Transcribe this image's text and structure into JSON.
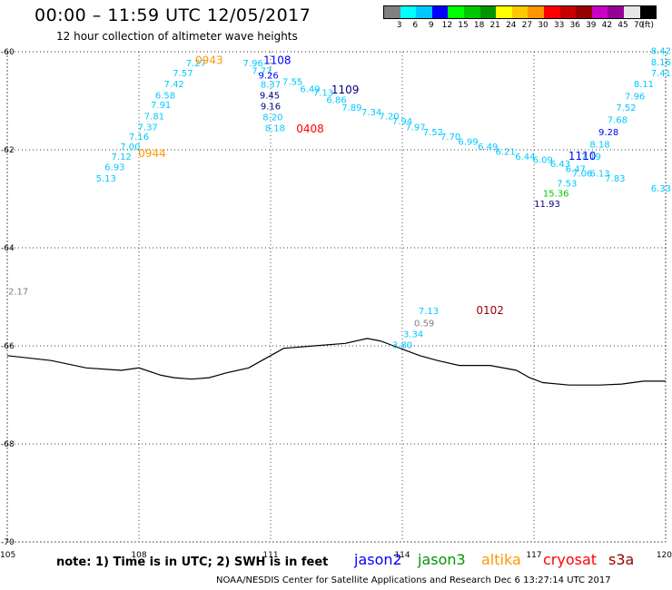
{
  "title": "00:00 – 11:59 UTC 12/05/2017",
  "subtitle": "12 hour collection of altimeter wave heights",
  "colorbar": {
    "colors": [
      "#808080",
      "#00ffff",
      "#00c8ff",
      "#0000ff",
      "#00ff00",
      "#00c800",
      "#009600",
      "#ffff00",
      "#ffc800",
      "#ff9600",
      "#ff0000",
      "#c80000",
      "#960000",
      "#c800c8",
      "#960096",
      "#e6e6e6",
      "#000000"
    ],
    "labels": [
      "3",
      "6",
      "9",
      "12",
      "15",
      "18",
      "21",
      "24",
      "27",
      "30",
      "33",
      "36",
      "39",
      "42",
      "45",
      "70",
      "(ft)"
    ]
  },
  "axes": {
    "lon": {
      "min": 105,
      "max": 120,
      "ticks": [
        "105",
        "108",
        "111",
        "114",
        "117",
        "120"
      ]
    },
    "lat": {
      "min": -70,
      "max": -60,
      "ticks": [
        "-60",
        "-62",
        "-64",
        "-66",
        "-68",
        "-70"
      ]
    }
  },
  "coastline": [
    [
      105,
      -66.2
    ],
    [
      106,
      -66.3
    ],
    [
      106.8,
      -66.45
    ],
    [
      107.6,
      -66.5
    ],
    [
      108,
      -66.45
    ],
    [
      108.5,
      -66.6
    ],
    [
      108.8,
      -66.65
    ],
    [
      109.2,
      -66.68
    ],
    [
      109.6,
      -66.65
    ],
    [
      110,
      -66.55
    ],
    [
      110.5,
      -66.45
    ],
    [
      110.8,
      -66.3
    ],
    [
      111,
      -66.2
    ],
    [
      111.3,
      -66.05
    ],
    [
      112,
      -66.0
    ],
    [
      112.7,
      -65.95
    ],
    [
      113.2,
      -65.85
    ],
    [
      113.5,
      -65.9
    ],
    [
      113.8,
      -66.0
    ],
    [
      114.1,
      -66.1
    ],
    [
      114.4,
      -66.2
    ],
    [
      114.8,
      -66.3
    ],
    [
      115.3,
      -66.4
    ],
    [
      116,
      -66.4
    ],
    [
      116.6,
      -66.5
    ],
    [
      116.9,
      -66.65
    ],
    [
      117.2,
      -66.75
    ],
    [
      117.8,
      -66.8
    ],
    [
      118.5,
      -66.8
    ],
    [
      119,
      -66.78
    ],
    [
      119.5,
      -66.72
    ],
    [
      120,
      -66.72
    ]
  ],
  "wave_labels": [
    {
      "text": "7.27",
      "lon": 109.3,
      "lat": -60.3,
      "color": "#00c8ff"
    },
    {
      "text": "7.57",
      "lon": 109.0,
      "lat": -60.5,
      "color": "#00c8ff"
    },
    {
      "text": "7.42",
      "lon": 108.8,
      "lat": -60.72,
      "color": "#00c8ff"
    },
    {
      "text": "6.58",
      "lon": 108.6,
      "lat": -60.95,
      "color": "#00c8ff"
    },
    {
      "text": "7.91",
      "lon": 108.5,
      "lat": -61.15,
      "color": "#00c8ff"
    },
    {
      "text": "7.81",
      "lon": 108.35,
      "lat": -61.38,
      "color": "#00c8ff"
    },
    {
      "text": "7.37",
      "lon": 108.2,
      "lat": -61.6,
      "color": "#00c8ff"
    },
    {
      "text": "7.16",
      "lon": 108.0,
      "lat": -61.8,
      "color": "#00c8ff"
    },
    {
      "text": "7.00",
      "lon": 107.8,
      "lat": -62.0,
      "color": "#00c8ff"
    },
    {
      "text": "7.12",
      "lon": 107.6,
      "lat": -62.2,
      "color": "#00c8ff"
    },
    {
      "text": "6.93",
      "lon": 107.45,
      "lat": -62.42,
      "color": "#00c8ff"
    },
    {
      "text": "5.13",
      "lon": 107.25,
      "lat": -62.65,
      "color": "#00c8ff"
    },
    {
      "text": "7.96",
      "lon": 110.6,
      "lat": -60.3,
      "color": "#00c8ff"
    },
    {
      "text": "7.77",
      "lon": 110.8,
      "lat": -60.45,
      "color": "#00c8ff"
    },
    {
      "text": "9.26",
      "lon": 110.95,
      "lat": -60.55,
      "color": "#0000ff"
    },
    {
      "text": "8.37",
      "lon": 111.0,
      "lat": -60.73,
      "color": "#00c8ff"
    },
    {
      "text": "7.55",
      "lon": 111.5,
      "lat": -60.68,
      "color": "#00c8ff"
    },
    {
      "text": "6.49",
      "lon": 111.9,
      "lat": -60.82,
      "color": "#00c8ff"
    },
    {
      "text": "7.13",
      "lon": 112.2,
      "lat": -60.9,
      "color": "#00c8ff"
    },
    {
      "text": "6.86",
      "lon": 112.5,
      "lat": -61.05,
      "color": "#00c8ff"
    },
    {
      "text": "7.89",
      "lon": 112.85,
      "lat": -61.2,
      "color": "#00c8ff"
    },
    {
      "text": "7.34",
      "lon": 113.3,
      "lat": -61.3,
      "color": "#00c8ff"
    },
    {
      "text": "7.20",
      "lon": 113.7,
      "lat": -61.38,
      "color": "#00c8ff"
    },
    {
      "text": "7.94",
      "lon": 114.0,
      "lat": -61.48,
      "color": "#00c8ff"
    },
    {
      "text": "7.97",
      "lon": 114.3,
      "lat": -61.6,
      "color": "#00c8ff"
    },
    {
      "text": "7.52",
      "lon": 114.7,
      "lat": -61.7,
      "color": "#00c8ff"
    },
    {
      "text": "7.70",
      "lon": 115.1,
      "lat": -61.8,
      "color": "#00c8ff"
    },
    {
      "text": "6.99",
      "lon": 115.5,
      "lat": -61.9,
      "color": "#00c8ff"
    },
    {
      "text": "6.49",
      "lon": 115.95,
      "lat": -62.0,
      "color": "#00c8ff"
    },
    {
      "text": "6.21",
      "lon": 116.35,
      "lat": -62.1,
      "color": "#00c8ff"
    },
    {
      "text": "6.44",
      "lon": 116.8,
      "lat": -62.2,
      "color": "#00c8ff"
    },
    {
      "text": "6.09",
      "lon": 117.2,
      "lat": -62.27,
      "color": "#00c8ff"
    },
    {
      "text": "6.43",
      "lon": 117.6,
      "lat": -62.35,
      "color": "#00c8ff"
    },
    {
      "text": "6.47",
      "lon": 117.95,
      "lat": -62.45,
      "color": "#00c8ff"
    },
    {
      "text": "7.19",
      "lon": 118.3,
      "lat": -62.2,
      "color": "#00c8ff"
    },
    {
      "text": "8.18",
      "lon": 118.5,
      "lat": -61.95,
      "color": "#00c8ff"
    },
    {
      "text": "9.28",
      "lon": 118.7,
      "lat": -61.7,
      "color": "#0000ff"
    },
    {
      "text": "7.68",
      "lon": 118.9,
      "lat": -61.45,
      "color": "#00c8ff"
    },
    {
      "text": "7.52",
      "lon": 119.1,
      "lat": -61.2,
      "color": "#00c8ff"
    },
    {
      "text": "7.96",
      "lon": 119.3,
      "lat": -60.97,
      "color": "#00c8ff"
    },
    {
      "text": "8.11",
      "lon": 119.5,
      "lat": -60.72,
      "color": "#00c8ff"
    },
    {
      "text": "7.41",
      "lon": 119.7,
      "lat": -60.5,
      "color": "#00c8ff"
    },
    {
      "text": "8.16",
      "lon": 119.85,
      "lat": -60.28,
      "color": "#00c8ff"
    },
    {
      "text": "8.42",
      "lon": 120.0,
      "lat": -60.05,
      "color": "#00c8ff"
    },
    {
      "text": "9.45",
      "lon": 110.98,
      "lat": -60.95,
      "color": "#000080"
    },
    {
      "text": "9.16",
      "lon": 111.0,
      "lat": -61.18,
      "color": "#000080"
    },
    {
      "text": "8.20",
      "lon": 111.05,
      "lat": -61.4,
      "color": "#00c8ff"
    },
    {
      "text": "8.18",
      "lon": 111.1,
      "lat": -61.62,
      "color": "#00c8ff"
    },
    {
      "text": "7.06",
      "lon": 118.1,
      "lat": -62.55,
      "color": "#00c8ff"
    },
    {
      "text": "6.13",
      "lon": 118.5,
      "lat": -62.55,
      "color": "#00c8ff"
    },
    {
      "text": "7.83",
      "lon": 118.85,
      "lat": -62.65,
      "color": "#00c8ff"
    },
    {
      "text": "7.53",
      "lon": 117.75,
      "lat": -62.75,
      "color": "#00c8ff"
    },
    {
      "text": "15.36",
      "lon": 117.5,
      "lat": -62.95,
      "color": "#00c800"
    },
    {
      "text": "11.93",
      "lon": 117.3,
      "lat": -63.17,
      "color": "#000080"
    },
    {
      "text": "6.33",
      "lon": 119.85,
      "lat": -62.85,
      "color": "#00c8ff"
    },
    {
      "text": "2.17",
      "lon": 105.25,
      "lat": -64.95,
      "color": "#808080"
    },
    {
      "text": "7.13",
      "lon": 114.6,
      "lat": -65.35,
      "color": "#00c8ff"
    },
    {
      "text": "0.59",
      "lon": 114.5,
      "lat": -65.6,
      "color": "#808080"
    },
    {
      "text": "3.34",
      "lon": 114.25,
      "lat": -65.82,
      "color": "#00c8ff"
    },
    {
      "text": "3.80",
      "lon": 114.0,
      "lat": -66.05,
      "color": "#00c8ff"
    }
  ],
  "time_labels": [
    {
      "text": "0943",
      "lon": 109.6,
      "lat": -60.25,
      "color": "#ff9600"
    },
    {
      "text": "1108",
      "lon": 111.15,
      "lat": -60.25,
      "color": "#0000ff"
    },
    {
      "text": "1109",
      "lon": 112.7,
      "lat": -60.85,
      "color": "#000080"
    },
    {
      "text": "0408",
      "lon": 111.9,
      "lat": -61.65,
      "color": "#ff0000"
    },
    {
      "text": "0944",
      "lon": 108.3,
      "lat": -62.15,
      "color": "#ff9600"
    },
    {
      "text": "1110",
      "lon": 118.1,
      "lat": -62.2,
      "color": "#0000ff"
    },
    {
      "text": "0102",
      "lon": 116.0,
      "lat": -65.35,
      "color": "#960000"
    }
  ],
  "note": "note: 1) Time is in UTC; 2) SWH is in feet",
  "legend": [
    {
      "name": "jason2",
      "color": "#0000ff"
    },
    {
      "name": "jason3",
      "color": "#009600"
    },
    {
      "name": "altika",
      "color": "#ff9600"
    },
    {
      "name": "cryosat",
      "color": "#ff0000"
    },
    {
      "name": "s3a",
      "color": "#960000"
    }
  ],
  "credit": "NOAA/NESDIS Center for Satellite Applications and Research   Dec  6 13:27:14 UTC 2017"
}
